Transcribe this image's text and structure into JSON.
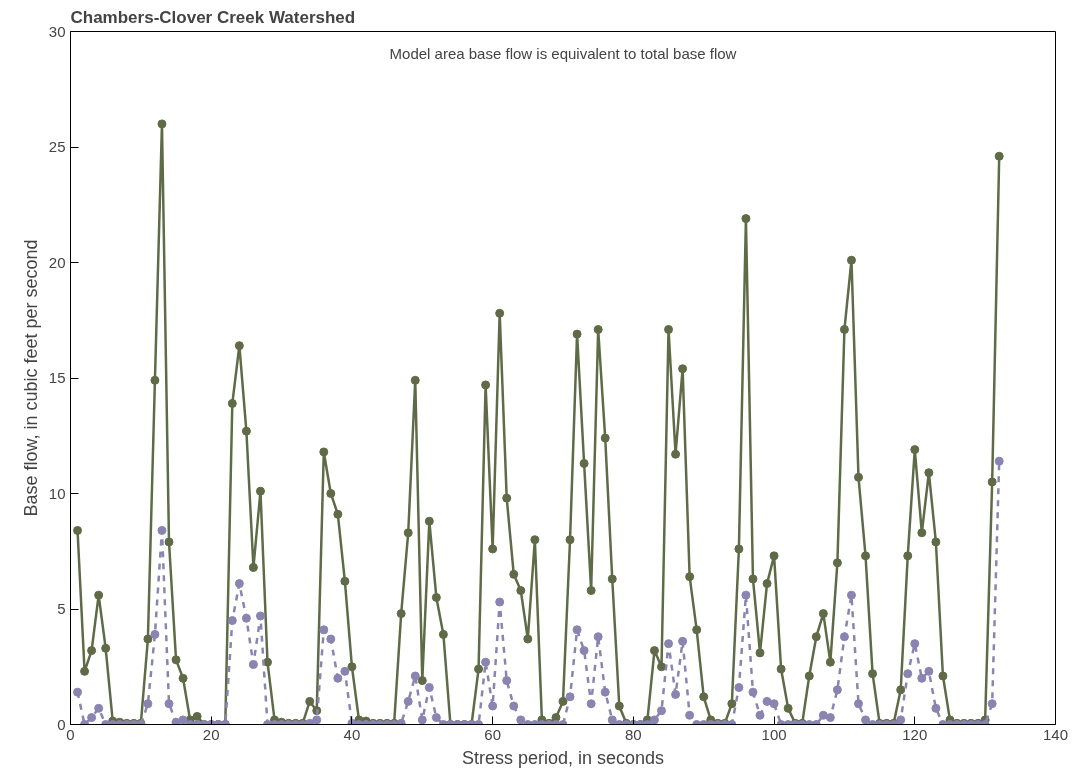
{
  "chart_data": {
    "type": "line",
    "title": "Chambers-Clover Creek Watershed",
    "xlabel": "Stress period, in seconds",
    "ylabel": "Base flow, in cubic feet per second",
    "annotations": [
      "Model area base flow is equivalent to total base flow"
    ],
    "x": [
      1,
      2,
      3,
      4,
      5,
      6,
      7,
      8,
      9,
      10,
      11,
      12,
      13,
      14,
      15,
      16,
      17,
      18,
      19,
      20,
      21,
      22,
      23,
      24,
      25,
      26,
      27,
      28,
      29,
      30,
      31,
      32,
      33,
      34,
      35,
      36,
      37,
      38,
      39,
      40,
      41,
      42,
      43,
      44,
      45,
      46,
      47,
      48,
      49,
      50,
      51,
      52,
      53,
      54,
      55,
      56,
      57,
      58,
      59,
      60,
      61,
      62,
      63,
      64,
      65,
      66,
      67,
      68,
      69,
      70,
      71,
      72,
      73,
      74,
      75,
      76,
      77,
      78,
      79,
      80,
      81,
      82,
      83,
      84,
      85,
      86,
      87,
      88,
      89,
      90,
      91,
      92,
      93,
      94,
      95,
      96,
      97,
      98,
      99,
      100,
      101,
      102,
      103,
      104,
      105,
      106,
      107,
      108,
      109,
      110,
      111,
      112,
      113,
      114,
      115,
      116,
      117,
      118,
      119,
      120,
      121,
      122,
      123,
      124,
      125,
      126,
      127,
      128,
      129,
      130,
      131,
      132
    ],
    "series": [
      {
        "color": "#5f6b47",
        "line_style": "solid",
        "values": [
          8.4,
          2.3,
          3.2,
          5.6,
          3.3,
          0.15,
          0.1,
          0.05,
          0.05,
          0.05,
          3.7,
          14.9,
          26.0,
          7.9,
          2.8,
          2.0,
          0.2,
          0.35,
          0,
          0,
          0,
          0,
          13.9,
          16.4,
          12.7,
          6.8,
          10.1,
          2.7,
          0.2,
          0.1,
          0.05,
          0.05,
          0.05,
          1.0,
          0.6,
          11.8,
          10.0,
          9.1,
          6.2,
          2.5,
          0.2,
          0.15,
          0.05,
          0.05,
          0.05,
          0.05,
          4.8,
          8.3,
          14.9,
          1.9,
          8.8,
          5.5,
          3.9,
          0,
          0,
          0,
          0,
          2.4,
          14.7,
          7.6,
          17.8,
          9.8,
          6.5,
          5.8,
          3.7,
          8.0,
          0.2,
          0.05,
          0.3,
          1.0,
          8.0,
          16.9,
          11.3,
          5.8,
          17.1,
          12.4,
          6.3,
          0.8,
          0.05,
          0,
          0,
          0.2,
          3.2,
          2.5,
          17.1,
          11.7,
          15.4,
          6.4,
          4.1,
          1.2,
          0.2,
          0.05,
          0.05,
          0.9,
          7.6,
          21.9,
          6.3,
          3.1,
          6.1,
          7.3,
          2.4,
          0.7,
          0.05,
          0.05,
          2.1,
          3.8,
          4.8,
          2.7,
          7.0,
          17.1,
          20.1,
          10.7,
          7.3,
          2.2,
          0.05,
          0.05,
          0.05,
          1.5,
          7.3,
          11.9,
          8.3,
          10.9,
          7.9,
          2.1,
          0.2,
          0.05,
          0.05,
          0.05,
          0.05,
          0.2,
          10.5,
          24.6
        ]
      },
      {
        "color": "#8a84b0",
        "line_style": "dashed",
        "values": [
          1.4,
          0,
          0.3,
          0.7,
          0,
          0,
          0,
          0,
          0,
          0,
          0.9,
          3.9,
          8.4,
          0.9,
          0.1,
          0.2,
          0,
          0,
          0,
          0,
          0,
          0,
          4.5,
          6.1,
          4.6,
          2.6,
          4.7,
          0,
          0,
          0,
          0,
          0,
          0,
          0.05,
          0.2,
          4.1,
          3.7,
          2.0,
          2.3,
          0.05,
          0,
          0,
          0,
          0,
          0,
          0,
          0.05,
          1.0,
          2.1,
          0.2,
          1.6,
          0.3,
          0,
          0,
          0,
          0,
          0,
          0,
          2.7,
          0.8,
          5.3,
          1.9,
          0.8,
          0.2,
          0,
          0,
          0,
          0,
          0,
          0,
          1.2,
          4.1,
          3.2,
          0.9,
          3.8,
          1.4,
          0.2,
          0,
          0,
          0,
          0,
          0,
          0.2,
          0.6,
          3.5,
          1.3,
          3.6,
          0.4,
          0,
          0,
          0,
          0,
          0,
          0,
          1.6,
          5.6,
          1.4,
          0.4,
          1.0,
          0.9,
          0,
          0,
          0,
          0,
          0,
          0,
          0.4,
          0.3,
          1.5,
          3.8,
          5.6,
          0.9,
          0.2,
          0,
          0,
          0,
          0,
          0.2,
          2.2,
          3.5,
          2.0,
          2.3,
          0.7,
          0,
          0,
          0,
          0,
          0,
          0,
          0,
          0.9,
          11.4
        ]
      }
    ],
    "xlim": [
      0,
      140
    ],
    "xticks": [
      0,
      20,
      40,
      60,
      80,
      100,
      120,
      140
    ],
    "ylim": [
      0,
      30
    ],
    "yticks": [
      0,
      5,
      10,
      15,
      20,
      25,
      30
    ],
    "marker": "circle",
    "grid": false
  }
}
